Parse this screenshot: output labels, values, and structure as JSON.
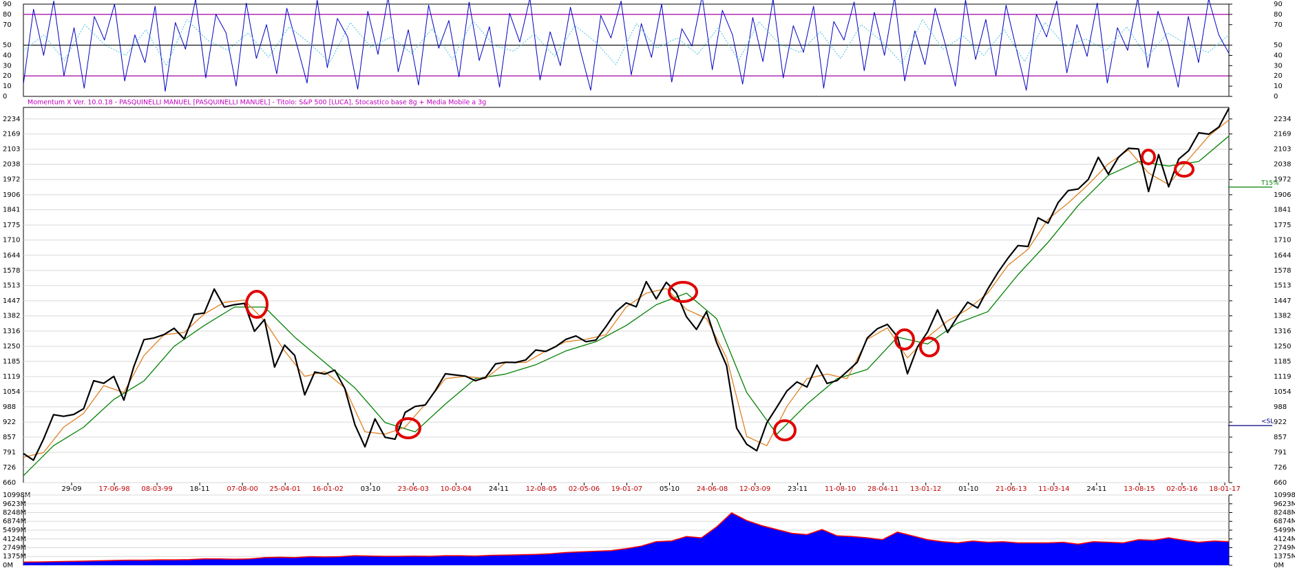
{
  "chart_data": [
    {
      "type": "line",
      "title": "Momentum X  Ver. 10.0.18  -  PASQUINELLI MANUEL  [PASQUINELLI MANUEL] - Titolo: S&P 500  [LUCA],  Stocastico base 8g + Media Mobile a 3g",
      "ylim": [
        0,
        90
      ],
      "yticks": [
        0,
        10,
        20,
        30,
        40,
        50,
        70,
        80,
        90
      ],
      "reference_lines": [
        {
          "value": 20,
          "color": "#a000a0"
        },
        {
          "value": 50,
          "color": "#000000"
        },
        {
          "value": 80,
          "color": "#a000a0"
        }
      ],
      "series": [
        {
          "color": "#0000c0",
          "dotted": false,
          "values": [
            12,
            85,
            40,
            93,
            20,
            67,
            8,
            78,
            55,
            90,
            15,
            60,
            33,
            88,
            5,
            72,
            46,
            95,
            18,
            80,
            62,
            10,
            91,
            37,
            70,
            22,
            86,
            50,
            13,
            94,
            28,
            76,
            58,
            7,
            83,
            41,
            97,
            24,
            65,
            11,
            89,
            47,
            74,
            19,
            92,
            35,
            68,
            9,
            81,
            53,
            96,
            16,
            63,
            30,
            87,
            44,
            6,
            79,
            57,
            93,
            21,
            71,
            38,
            90,
            14,
            66,
            49,
            98,
            26,
            84,
            60,
            12,
            77,
            34,
            95,
            18,
            69,
            43,
            88,
            8,
            73,
            55,
            92,
            25,
            82,
            40,
            97,
            15,
            64,
            31,
            86,
            51,
            10,
            94,
            36,
            75,
            20,
            89,
            47,
            6,
            80,
            58,
            93,
            23,
            70,
            39,
            91,
            13,
            67,
            45,
            96,
            28,
            83,
            52,
            9,
            78,
            33,
            95,
            60,
            42
          ]
        },
        {
          "color": "#40c0e0",
          "dotted": true,
          "values": [
            45,
            60,
            35,
            70,
            50,
            40,
            65,
            30,
            75,
            55,
            45,
            62,
            38,
            68,
            52,
            33,
            72,
            48,
            58,
            42,
            66,
            36,
            74,
            50,
            44,
            61,
            39,
            69,
            53,
            31,
            71,
            47,
            57,
            41,
            67,
            35,
            73,
            51,
            43,
            63,
            37,
            70,
            54,
            32,
            75,
            46,
            59,
            40,
            65,
            34,
            72,
            49,
            56,
            45,
            68,
            38,
            62,
            50,
            43,
            60
          ]
        }
      ]
    },
    {
      "type": "line",
      "ylim": [
        660,
        2284
      ],
      "yticks": [
        660,
        726,
        791,
        857,
        922,
        988,
        1054,
        1119,
        1185,
        1250,
        1316,
        1382,
        1447,
        1513,
        1578,
        1644,
        1710,
        1775,
        1841,
        1906,
        1972,
        2038,
        2103,
        2169,
        2234
      ],
      "grid": true,
      "x_tick_labels": [
        "29-09",
        "17-06-98",
        "08-03-99",
        "18-11",
        "07-08-00",
        "25-04-01",
        "16-01-02",
        "03-10",
        "23-06-03",
        "10-03-04",
        "24-11",
        "12-08-05",
        "02-05-06",
        "19-01-07",
        "05-10",
        "24-06-08",
        "12-03-09",
        "23-11",
        "11-08-10",
        "28-04-11",
        "13-01-12",
        "01-10",
        "21-06-13",
        "11-03-14",
        "24-11",
        "13-08-15",
        "02-05-16",
        "18-01-17"
      ],
      "markers": [
        {
          "label": "T15%",
          "value": 1939,
          "color": "#008000"
        },
        {
          "label": "<SL",
          "value": 907,
          "color": "#000080"
        }
      ],
      "series": [
        {
          "color": "#008000",
          "width": 1.3,
          "values": [
            690,
            820,
            900,
            1020,
            1100,
            1250,
            1340,
            1420,
            1420,
            1290,
            1180,
            1070,
            920,
            880,
            1000,
            1110,
            1130,
            1170,
            1230,
            1270,
            1340,
            1430,
            1480,
            1370,
            1050,
            870,
            1000,
            1110,
            1150,
            1290,
            1260,
            1350,
            1400,
            1560,
            1700,
            1860,
            1990,
            2050,
            2030,
            2050,
            2160
          ]
        },
        {
          "color": "#e08020",
          "width": 1.3,
          "values": [
            770,
            790,
            900,
            960,
            1080,
            1050,
            1210,
            1300,
            1310,
            1390,
            1440,
            1450,
            1360,
            1230,
            1120,
            1140,
            1070,
            880,
            870,
            900,
            1000,
            1110,
            1120,
            1110,
            1180,
            1180,
            1230,
            1270,
            1280,
            1300,
            1420,
            1480,
            1500,
            1410,
            1370,
            1200,
            860,
            820,
            990,
            1110,
            1130,
            1110,
            1280,
            1330,
            1200,
            1290,
            1360,
            1410,
            1480,
            1600,
            1670,
            1800,
            1870,
            1950,
            2040,
            2100,
            2000,
            1950,
            2060,
            2160,
            2230
          ]
        },
        {
          "color": "#000000",
          "width": 2.2,
          "values": [
            786,
            757,
            848,
            954,
            947,
            955,
            980,
            1101,
            1090,
            1120,
            1017,
            1163,
            1279,
            1286,
            1301,
            1328,
            1282,
            1388,
            1394,
            1498,
            1420,
            1430,
            1436,
            1315,
            1366,
            1160,
            1255,
            1211,
            1040,
            1139,
            1130,
            1147,
            1067,
            911,
            815,
            936,
            856,
            848,
            964,
            990,
            996,
            1058,
            1131,
            1126,
            1121,
            1101,
            1115,
            1174,
            1181,
            1180,
            1191,
            1234,
            1228,
            1249,
            1280,
            1295,
            1270,
            1277,
            1336,
            1400,
            1438,
            1421,
            1530,
            1455,
            1527,
            1481,
            1378,
            1323,
            1400,
            1267,
            1166,
            896,
            826,
            798,
            919,
            987,
            1057,
            1096,
            1074,
            1169,
            1089,
            1102,
            1141,
            1181,
            1286,
            1326,
            1345,
            1292,
            1131,
            1247,
            1312,
            1408,
            1310,
            1379,
            1441,
            1416,
            1498,
            1569,
            1631,
            1686,
            1682,
            1806,
            1783,
            1872,
            1924,
            1931,
            1972,
            2068,
            1995,
            2068,
            2107,
            2104,
            1920,
            2080,
            1940,
            2060,
            2097,
            2174,
            2168,
            2199,
            2280
          ]
        }
      ]
    },
    {
      "type": "area",
      "ylim": [
        0,
        10998
      ],
      "yticks": [
        {
          "value": 0,
          "label": "0M"
        },
        {
          "value": 1375,
          "label": "1375M"
        },
        {
          "value": 2749,
          "label": "2749M"
        },
        {
          "value": 4124,
          "label": "4124M"
        },
        {
          "value": 5499,
          "label": "5499M"
        },
        {
          "value": 6874,
          "label": "6874M"
        },
        {
          "value": 8248,
          "label": "8248M"
        },
        {
          "value": 9623,
          "label": "9623M"
        },
        {
          "value": 10998,
          "label": "10998M"
        }
      ],
      "color": "#0000ff",
      "line_color": "#ff0000",
      "values": [
        500,
        520,
        560,
        600,
        650,
        700,
        750,
        800,
        800,
        850,
        850,
        900,
        1000,
        1000,
        950,
        1000,
        1200,
        1250,
        1200,
        1350,
        1300,
        1350,
        1500,
        1450,
        1400,
        1400,
        1450,
        1400,
        1500,
        1500,
        1450,
        1550,
        1600,
        1650,
        1700,
        1800,
        2000,
        2100,
        2200,
        2300,
        2600,
        3000,
        3700,
        3800,
        4500,
        4300,
        6000,
        8200,
        7000,
        6200,
        5600,
        5000,
        4800,
        5600,
        4600,
        4500,
        4300,
        4000,
        5200,
        4600,
        4000,
        3700,
        3500,
        3800,
        3600,
        3700,
        3500,
        3500,
        3500,
        3600,
        3300,
        3700,
        3600,
        3500,
        4000,
        3900,
        4300,
        3900,
        3600,
        3800,
        3700
      ]
    }
  ]
}
